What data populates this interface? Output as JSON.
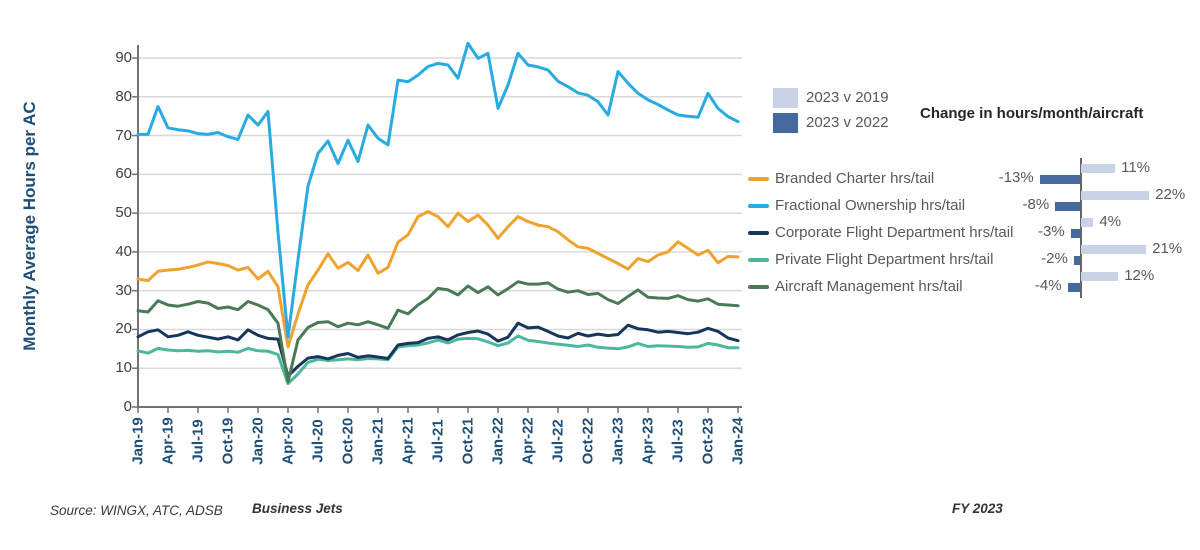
{
  "comparison_legend": [
    {
      "label": "2023 v 2019",
      "color": "#c9d2e6"
    },
    {
      "label": "2023 v 2022",
      "color": "#44699e"
    }
  ],
  "footer": {
    "source": "Source: WINGX, ATC, ADSB",
    "segment": "Business Jets",
    "period": "FY 2023"
  },
  "chart_data": [
    {
      "type": "line",
      "title": "",
      "ylabel": "Monthly Average Hours per AC",
      "xlabel": "",
      "ylim": [
        0,
        90
      ],
      "grid": true,
      "y_ticks": [
        0,
        10,
        20,
        30,
        40,
        50,
        60,
        70,
        80,
        90
      ],
      "x_tick_labels": [
        "Jan-19",
        "Apr-19",
        "Jul-19",
        "Oct-19",
        "Jan-20",
        "Apr-20",
        "Jul-20",
        "Oct-20",
        "Jan-21",
        "Apr-21",
        "Jul-21",
        "Oct-21",
        "Jan-22",
        "Apr-22",
        "Jul-22",
        "Oct-22",
        "Jan-23",
        "Apr-23",
        "Jul-23",
        "Oct-23",
        "Jan-24"
      ],
      "x": [
        "Jan-19",
        "Feb-19",
        "Mar-19",
        "Apr-19",
        "May-19",
        "Jun-19",
        "Jul-19",
        "Aug-19",
        "Sep-19",
        "Oct-19",
        "Nov-19",
        "Dec-19",
        "Jan-20",
        "Feb-20",
        "Mar-20",
        "Apr-20",
        "May-20",
        "Jun-20",
        "Jul-20",
        "Aug-20",
        "Sep-20",
        "Oct-20",
        "Nov-20",
        "Dec-20",
        "Jan-21",
        "Feb-21",
        "Mar-21",
        "Apr-21",
        "May-21",
        "Jun-21",
        "Jul-21",
        "Aug-21",
        "Sep-21",
        "Oct-21",
        "Nov-21",
        "Dec-21",
        "Jan-22",
        "Feb-22",
        "Mar-22",
        "Apr-22",
        "May-22",
        "Jun-22",
        "Jul-22",
        "Aug-22",
        "Sep-22",
        "Oct-22",
        "Nov-22",
        "Dec-22",
        "Jan-23",
        "Feb-23",
        "Mar-23",
        "Apr-23",
        "May-23",
        "Jun-23",
        "Jul-23",
        "Aug-23",
        "Sep-23",
        "Oct-23",
        "Nov-23",
        "Dec-23",
        "Jan-24"
      ],
      "series": [
        {
          "name": "Branded Charter hrs/tail",
          "color": "#f0a22e",
          "values": [
            33,
            32.6,
            35,
            35.3,
            35.5,
            36,
            36.6,
            37.4,
            37,
            36.5,
            35.3,
            36,
            33,
            35,
            31,
            15.5,
            24,
            31.5,
            35.3,
            39.5,
            35.8,
            37.3,
            35.2,
            39.2,
            34.5,
            36,
            42.5,
            44.4,
            49.1,
            50.4,
            49.1,
            46.5,
            50,
            47.8,
            49.5,
            46.9,
            43.5,
            46.5,
            49.1,
            47.8,
            46.9,
            46.5,
            45.2,
            43.1,
            41.3,
            40.9,
            39.6,
            38.3,
            37,
            35.6,
            38.3,
            37.5,
            39.2,
            40,
            42.6,
            40.9,
            39.2,
            40.4,
            37.2,
            38.8,
            38.7
          ]
        },
        {
          "name": "Fractional Ownership hrs/tail",
          "color": "#29abe2",
          "values": [
            70.3,
            70.3,
            77.5,
            72,
            71.5,
            71.2,
            70.5,
            70.3,
            70.8,
            69.7,
            69,
            75.3,
            72.7,
            76.2,
            45,
            18,
            38,
            57,
            65.4,
            68.6,
            62.8,
            68.8,
            63.3,
            72.7,
            69.3,
            67.6,
            84.3,
            83.9,
            85.6,
            87.8,
            88.6,
            88.2,
            84.8,
            93.8,
            89.9,
            91.2,
            77,
            83,
            91.2,
            88.2,
            87.7,
            86.9,
            84,
            82.6,
            81,
            80.4,
            78.7,
            75.3,
            86.5,
            83.5,
            80.9,
            79.2,
            78,
            76.6,
            75.3,
            75,
            74.7,
            80.9,
            77,
            74.9,
            73.6
          ]
        },
        {
          "name": "Corporate Flight Department hrs/tail",
          "color": "#17365d",
          "values": [
            18.1,
            19.4,
            19.9,
            18.1,
            18.5,
            19.4,
            18.5,
            18,
            17.5,
            18.1,
            17.3,
            19.9,
            18.5,
            17.7,
            17.5,
            8,
            10.5,
            12.6,
            13,
            12.4,
            13.3,
            13.8,
            12.8,
            13.2,
            12.9,
            12.5,
            16,
            16.4,
            16.6,
            17.7,
            18.1,
            17.3,
            18.6,
            19.2,
            19.6,
            18.8,
            17,
            18,
            21.6,
            20.4,
            20.6,
            19.5,
            18.3,
            17.8,
            19,
            18.3,
            18.8,
            18.4,
            18.7,
            21.1,
            20.2,
            19.9,
            19.3,
            19.5,
            19.2,
            18.9,
            19.3,
            20.3,
            19.5,
            17.8,
            17.1
          ]
        },
        {
          "name": "Private Flight Department hrs/tail",
          "color": "#4db899",
          "values": [
            14.5,
            13.9,
            15.1,
            14.7,
            14.5,
            14.6,
            14.4,
            14.5,
            14.2,
            14.4,
            14.1,
            15.1,
            14.5,
            14.4,
            13.5,
            6,
            8.5,
            11.5,
            12.3,
            12,
            12.2,
            12.4,
            12.2,
            12.5,
            12.4,
            12.2,
            15.5,
            15.8,
            16,
            16.5,
            17.3,
            16.5,
            17.5,
            17.7,
            17.6,
            16.8,
            15.8,
            16.5,
            18.3,
            17.2,
            16.9,
            16.5,
            16.2,
            15.9,
            15.6,
            16,
            15.4,
            15.2,
            15,
            15.5,
            16.4,
            15.6,
            15.8,
            15.7,
            15.6,
            15.4,
            15.5,
            16.4,
            16,
            15.3,
            15.3
          ]
        },
        {
          "name": "Aircraft Management hrs/tail",
          "color": "#4a7a55",
          "values": [
            24.8,
            24.5,
            27.4,
            26.3,
            26,
            26.5,
            27.2,
            26.8,
            25.4,
            25.8,
            25.1,
            27.2,
            26.3,
            25.1,
            21.6,
            6.5,
            17.3,
            20.5,
            21.8,
            22,
            20.7,
            21.6,
            21.2,
            22,
            21.2,
            20.3,
            25,
            24,
            26.3,
            28,
            30.6,
            30.2,
            28.9,
            31.2,
            29.5,
            31,
            28.9,
            30.5,
            32.3,
            31.7,
            31.7,
            32,
            30.4,
            29.6,
            30,
            29,
            29.3,
            27.7,
            26.7,
            28.5,
            30.2,
            28.3,
            28.1,
            28,
            28.7,
            27.7,
            27.3,
            27.9,
            26.5,
            26.3,
            26.1
          ]
        }
      ]
    },
    {
      "type": "bar",
      "orientation": "horizontal",
      "title": "Change in hours/month/aircraft",
      "categories": [
        "Branded Charter hrs/tail",
        "Fractional Ownership hrs/tail",
        "Corporate Flight Department hrs/tail",
        "Private Flight Department hrs/tail",
        "Aircraft Management hrs/tail"
      ],
      "series": [
        {
          "name": "2023 v 2019",
          "color": "#c9d2e6",
          "values": [
            11,
            22,
            4,
            21,
            12
          ],
          "labels": [
            "11%",
            "22%",
            "4%",
            "21%",
            "12%"
          ]
        },
        {
          "name": "2023 v 2022",
          "color": "#44699e",
          "values": [
            -13,
            -8,
            -3,
            -2,
            -4
          ],
          "labels": [
            "-13%",
            "-8%",
            "-3%",
            "-2%",
            "-4%"
          ]
        }
      ]
    }
  ]
}
